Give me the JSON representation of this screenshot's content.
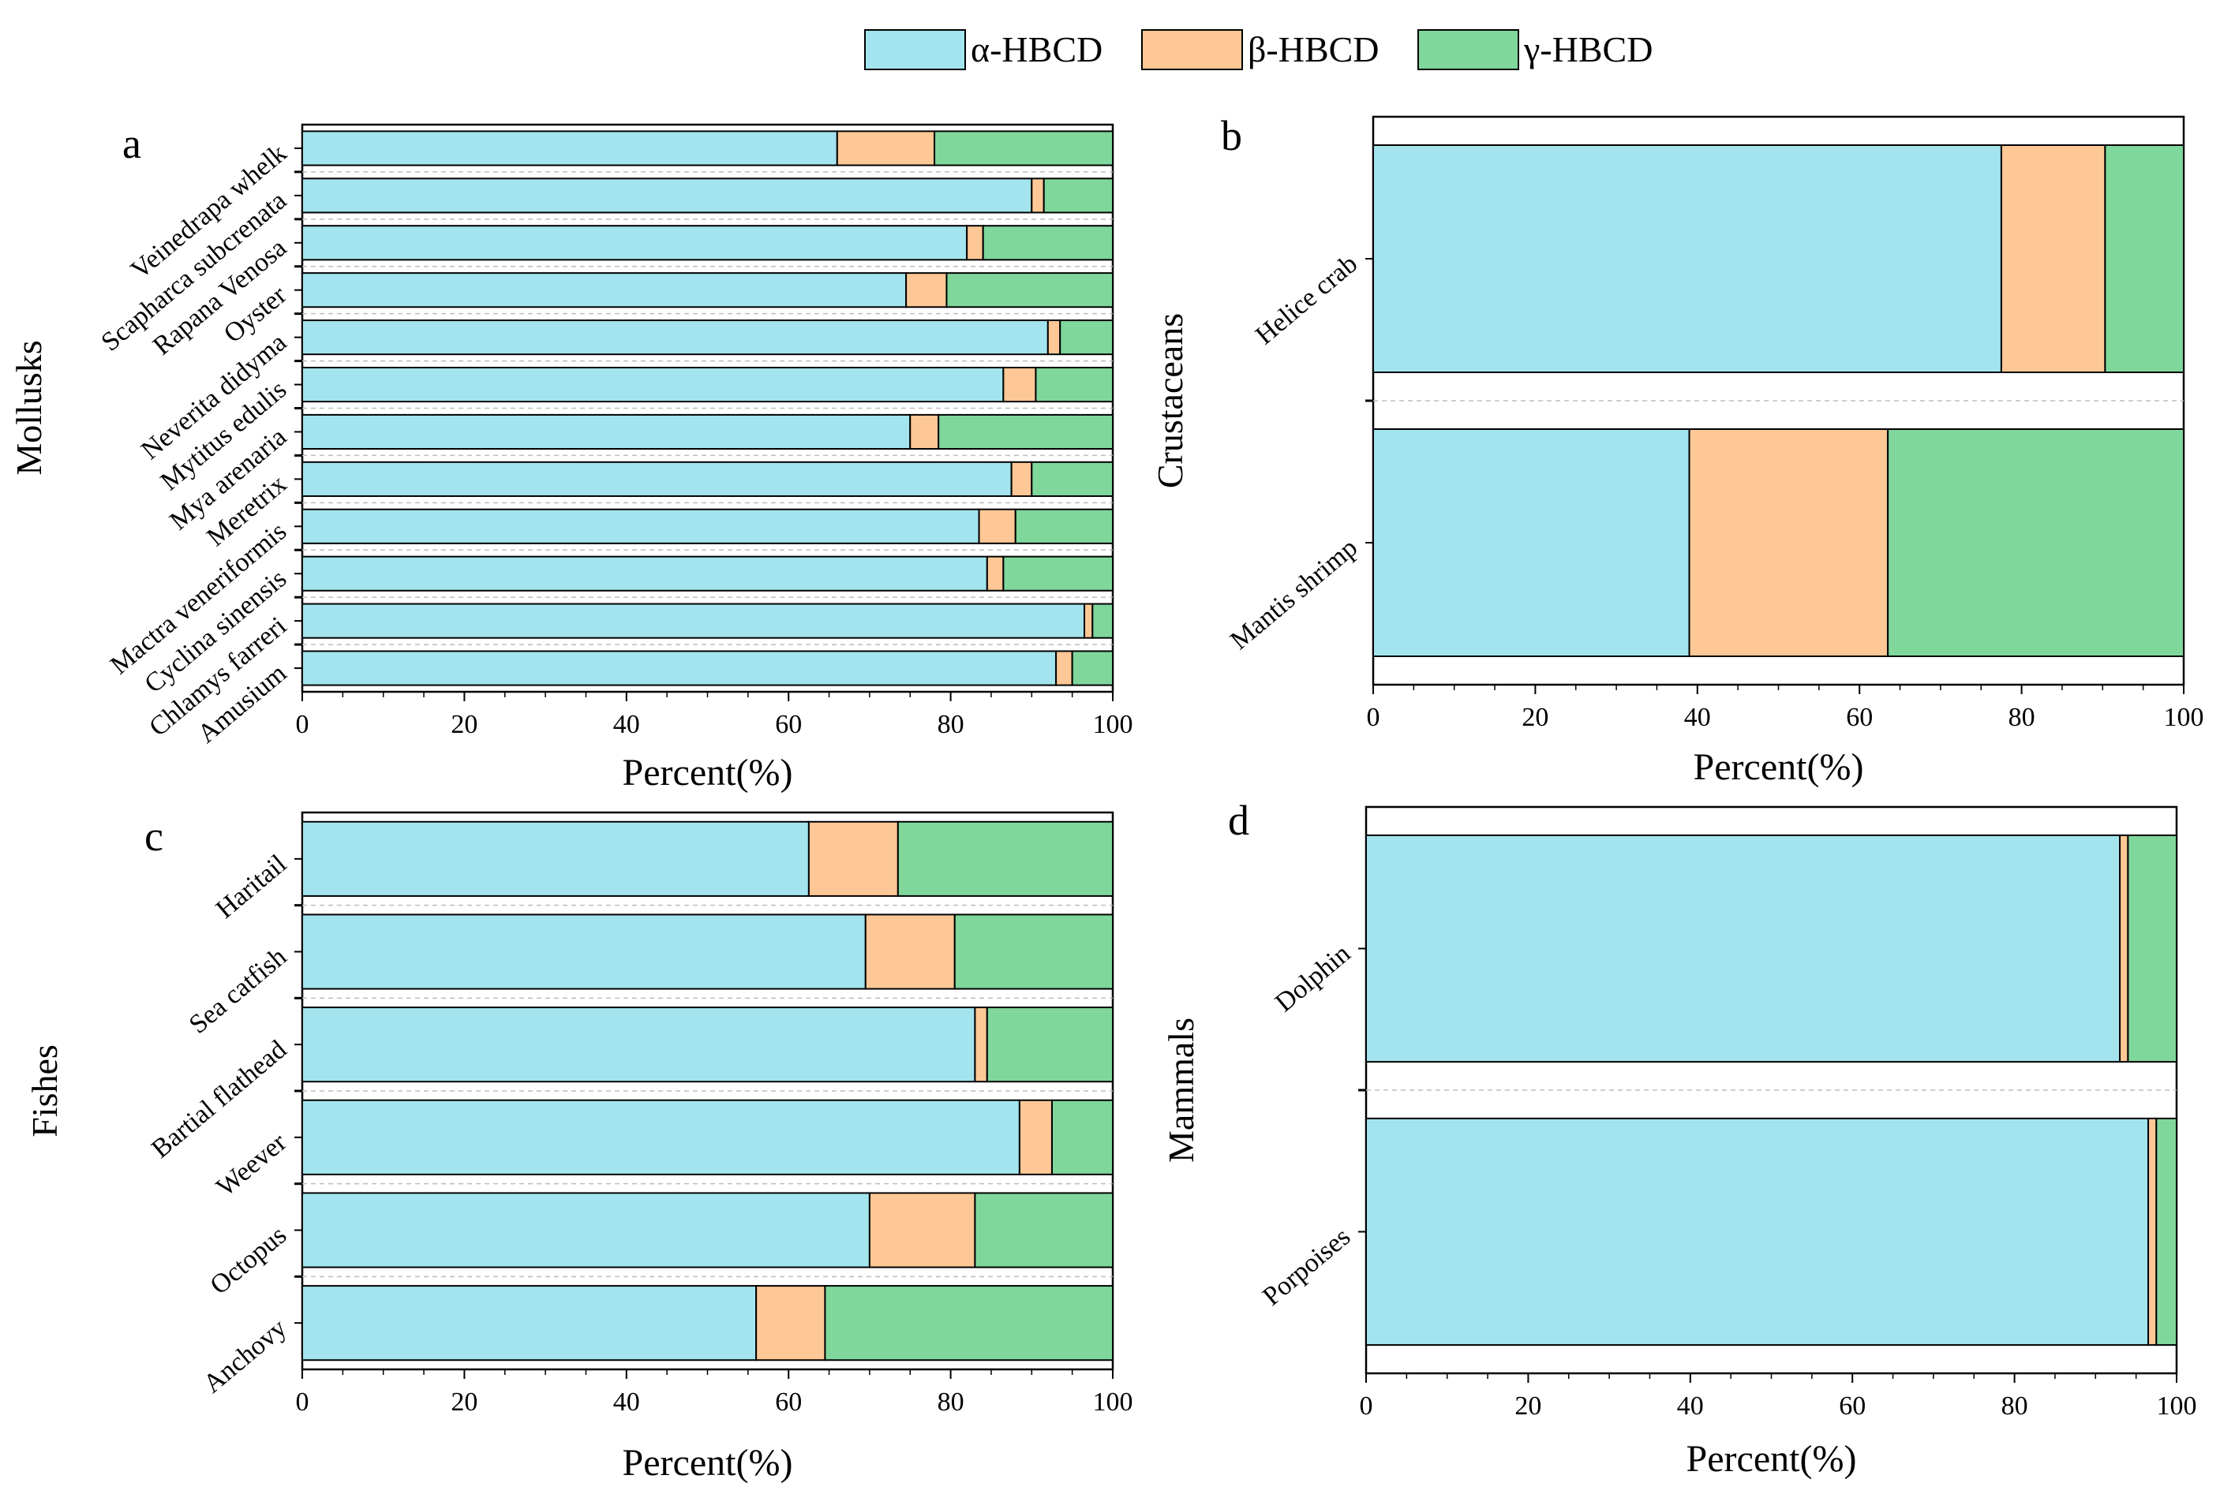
{
  "legend": {
    "items": [
      {
        "label": "α-HBCD",
        "color": "#a3e4ee"
      },
      {
        "label": "β-HBCD",
        "color": "#fdc896"
      },
      {
        "label": "γ-HBCD",
        "color": "#7fd79b"
      }
    ]
  },
  "chart_data": [
    {
      "type": "bar",
      "stacked": "horizontal",
      "panel": "a",
      "ylabel": "Mollusks",
      "xlabel": "Percent(%)",
      "xlim": [
        0,
        100
      ],
      "xticks": [
        "0",
        "20",
        "40",
        "60",
        "80",
        "100"
      ],
      "categories": [
        "Veinedrapa whelk",
        "Scapharca subcrenata",
        "Rapana Venosa",
        "Oyster",
        "Neverita didyma",
        "Mytitus edulis",
        "Mya arenaria",
        "Meretrix",
        "Mactra veneriformis",
        "Cyclina sinensis",
        "Chlamys farreri",
        "Amusium"
      ],
      "series": [
        {
          "name": "α-HBCD",
          "values": [
            66,
            90,
            82,
            74.5,
            92,
            86.5,
            75,
            87.5,
            83.5,
            84.5,
            96.5,
            93
          ]
        },
        {
          "name": "β-HBCD",
          "values": [
            12,
            1.5,
            2,
            5,
            1.5,
            4,
            3.5,
            2.5,
            4.5,
            2,
            1,
            2
          ]
        },
        {
          "name": "γ-HBCD",
          "values": [
            22,
            8.5,
            16,
            20.5,
            6.5,
            9.5,
            21.5,
            10,
            12,
            13.5,
            2.5,
            5
          ]
        }
      ]
    },
    {
      "type": "bar",
      "stacked": "horizontal",
      "panel": "b",
      "ylabel": "Crustaceans",
      "xlabel": "Percent(%)",
      "xlim": [
        0,
        100
      ],
      "xticks": [
        "0",
        "20",
        "40",
        "60",
        "80",
        "100"
      ],
      "categories": [
        "Helice crab",
        "Mantis shrimp"
      ],
      "series": [
        {
          "name": "α-HBCD",
          "values": [
            77.5,
            39
          ]
        },
        {
          "name": "β-HBCD",
          "values": [
            12.8,
            24.5
          ]
        },
        {
          "name": "γ-HBCD",
          "values": [
            9.7,
            36.5
          ]
        }
      ]
    },
    {
      "type": "bar",
      "stacked": "horizontal",
      "panel": "c",
      "ylabel": "Fishes",
      "xlabel": "Percent(%)",
      "xlim": [
        0,
        100
      ],
      "xticks": [
        "0",
        "20",
        "40",
        "60",
        "80",
        "100"
      ],
      "categories": [
        "Haritail",
        "Sea catfish",
        "Bartial flathead",
        "Weever",
        "Octopus",
        "Anchovy"
      ],
      "series": [
        {
          "name": "α-HBCD",
          "values": [
            62.5,
            69.5,
            83,
            88.5,
            70,
            56
          ]
        },
        {
          "name": "β-HBCD",
          "values": [
            11,
            11,
            1.5,
            4,
            13,
            8.5
          ]
        },
        {
          "name": "γ-HBCD",
          "values": [
            26.5,
            19.5,
            15.5,
            7.5,
            17,
            35.5
          ]
        }
      ]
    },
    {
      "type": "bar",
      "stacked": "horizontal",
      "panel": "d",
      "ylabel": "Mammals",
      "xlabel": "Percent(%)",
      "xlim": [
        0,
        100
      ],
      "xticks": [
        "0",
        "20",
        "40",
        "60",
        "80",
        "100"
      ],
      "categories": [
        "Dolphin",
        "Porpoises"
      ],
      "series": [
        {
          "name": "α-HBCD",
          "values": [
            93,
            96.5
          ]
        },
        {
          "name": "β-HBCD",
          "values": [
            1,
            1
          ]
        },
        {
          "name": "γ-HBCD",
          "values": [
            6,
            2.5
          ]
        }
      ]
    }
  ]
}
